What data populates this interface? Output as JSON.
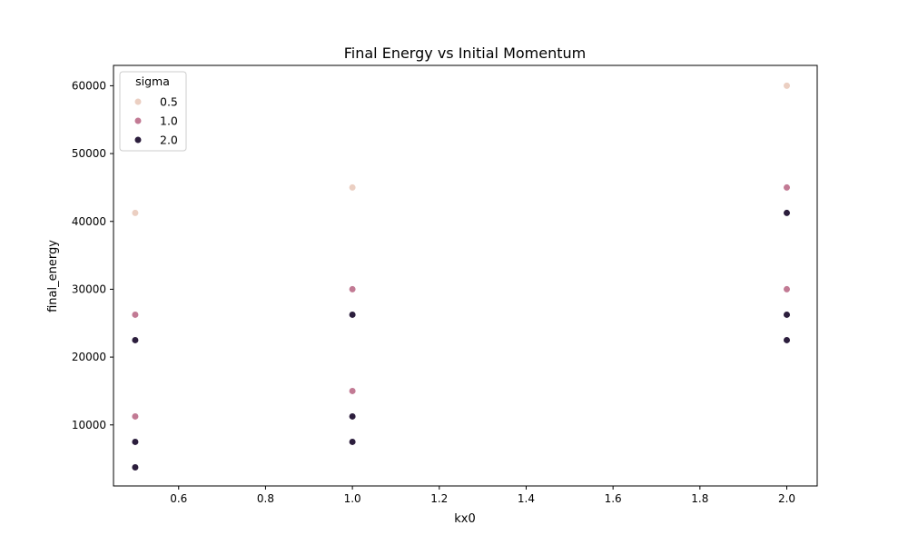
{
  "chart_data": {
    "type": "scatter",
    "title": "Final Energy vs Initial Momentum",
    "xlabel": "kx0",
    "ylabel": "final_energy",
    "xlim": [
      0.45,
      2.07
    ],
    "ylim": [
      1000,
      63000
    ],
    "x_ticks": [
      "0.6",
      "0.8",
      "1.0",
      "1.2",
      "1.4",
      "1.6",
      "1.8",
      "2.0"
    ],
    "y_ticks": [
      "10000",
      "20000",
      "30000",
      "40000",
      "50000",
      "60000"
    ],
    "grid": false,
    "legend": {
      "title": "sigma",
      "placement": "top-left"
    },
    "series": [
      {
        "name": "0.5",
        "color": "#ebcfc2",
        "points": [
          {
            "x": 0.5,
            "y": 41250
          },
          {
            "x": 1.0,
            "y": 45000
          },
          {
            "x": 2.0,
            "y": 60000
          }
        ]
      },
      {
        "name": "1.0",
        "color": "#c27a94",
        "points": [
          {
            "x": 0.5,
            "y": 26250
          },
          {
            "x": 0.5,
            "y": 11250
          },
          {
            "x": 1.0,
            "y": 30000
          },
          {
            "x": 1.0,
            "y": 15000
          },
          {
            "x": 2.0,
            "y": 45000
          },
          {
            "x": 2.0,
            "y": 30000
          }
        ]
      },
      {
        "name": "2.0",
        "color": "#2c1e3d",
        "points": [
          {
            "x": 0.5,
            "y": 22500
          },
          {
            "x": 0.5,
            "y": 7500
          },
          {
            "x": 0.5,
            "y": 3750
          },
          {
            "x": 1.0,
            "y": 26250
          },
          {
            "x": 1.0,
            "y": 11250
          },
          {
            "x": 1.0,
            "y": 7500
          },
          {
            "x": 2.0,
            "y": 41250
          },
          {
            "x": 2.0,
            "y": 26250
          },
          {
            "x": 2.0,
            "y": 22500
          }
        ]
      }
    ]
  }
}
